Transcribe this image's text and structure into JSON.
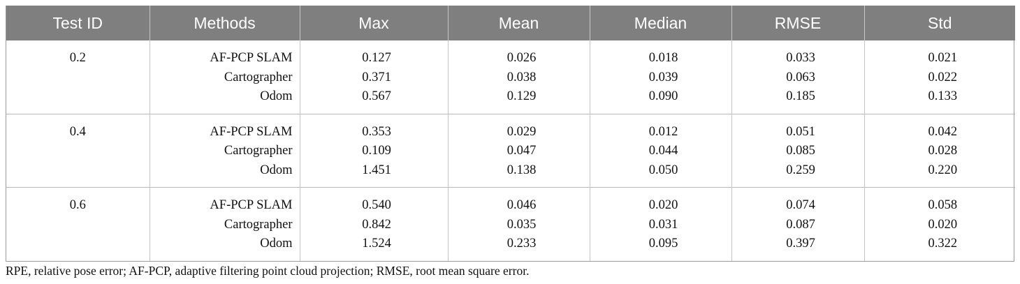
{
  "table": {
    "headers": [
      "Test ID",
      "Methods",
      "Max",
      "Mean",
      "Median",
      "RMSE",
      "Std"
    ],
    "groups": [
      {
        "test_id": "0.2",
        "rows": [
          {
            "method": "AF-PCP SLAM",
            "max": "0.127",
            "mean": "0.026",
            "median": "0.018",
            "rmse": "0.033",
            "std": "0.021"
          },
          {
            "method": "Cartographer",
            "max": "0.371",
            "mean": "0.038",
            "median": "0.039",
            "rmse": "0.063",
            "std": "0.022"
          },
          {
            "method": "Odom",
            "max": "0.567",
            "mean": "0.129",
            "median": "0.090",
            "rmse": "0.185",
            "std": "0.133"
          }
        ]
      },
      {
        "test_id": "0.4",
        "rows": [
          {
            "method": "AF-PCP SLAM",
            "max": "0.353",
            "mean": "0.029",
            "median": "0.012",
            "rmse": "0.051",
            "std": "0.042"
          },
          {
            "method": "Cartographer",
            "max": "0.109",
            "mean": "0.047",
            "median": "0.044",
            "rmse": "0.085",
            "std": "0.028"
          },
          {
            "method": "Odom",
            "max": "1.451",
            "mean": "0.138",
            "median": "0.050",
            "rmse": "0.259",
            "std": "0.220"
          }
        ]
      },
      {
        "test_id": "0.6",
        "rows": [
          {
            "method": "AF-PCP SLAM",
            "max": "0.540",
            "mean": "0.046",
            "median": "0.020",
            "rmse": "0.074",
            "std": "0.058"
          },
          {
            "method": "Cartographer",
            "max": "0.842",
            "mean": "0.035",
            "median": "0.031",
            "rmse": "0.087",
            "std": "0.020"
          },
          {
            "method": "Odom",
            "max": "1.524",
            "mean": "0.233",
            "median": "0.095",
            "rmse": "0.397",
            "std": "0.322"
          }
        ]
      }
    ]
  },
  "footnote": "RPE, relative pose error; AF-PCP, adaptive filtering point cloud projection; RMSE, root mean square error.",
  "colors": {
    "header_background": "#7f7f7f",
    "header_text": "#ffffff",
    "body_text": "#111111"
  }
}
